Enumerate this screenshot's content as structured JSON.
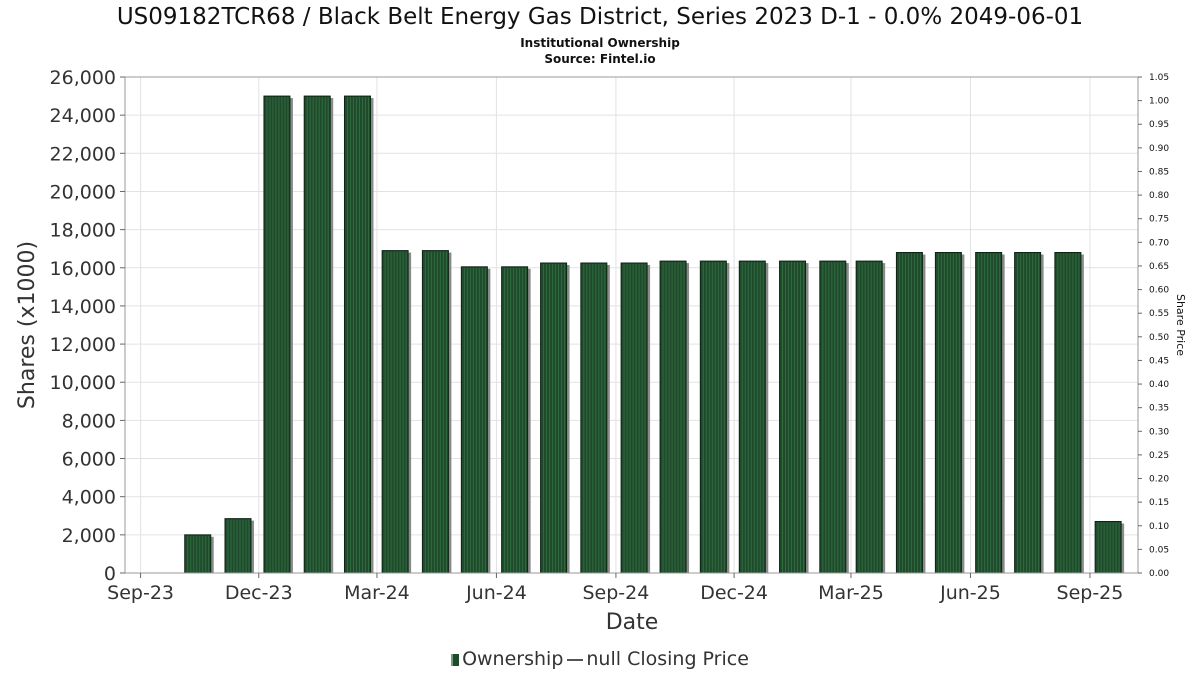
{
  "chart_data": {
    "type": "bar",
    "title": "US09182TCR68 / Black Belt Energy Gas District, Series 2023 D-1 - 0.0% 2049-06-01",
    "subtitle": "Institutional Ownership",
    "source": "Source: Fintel.io",
    "xlabel": "Date",
    "ylabel": "Shares (x1000)",
    "y2label": "Share Price",
    "ylim": [
      0,
      26000
    ],
    "y2lim": [
      0,
      1.05
    ],
    "y_ticks": [
      "0",
      "2,000",
      "4,000",
      "6,000",
      "8,000",
      "10,000",
      "12,000",
      "14,000",
      "16,000",
      "18,000",
      "20,000",
      "22,000",
      "24,000",
      "26,000"
    ],
    "y_tick_values": [
      0,
      2000,
      4000,
      6000,
      8000,
      10000,
      12000,
      14000,
      16000,
      18000,
      20000,
      22000,
      24000,
      26000
    ],
    "y2_ticks": [
      "0.00",
      "0.05",
      "0.10",
      "0.15",
      "0.20",
      "0.25",
      "0.30",
      "0.35",
      "0.40",
      "0.45",
      "0.50",
      "0.55",
      "0.60",
      "0.65",
      "0.70",
      "0.75",
      "0.80",
      "0.85",
      "0.90",
      "0.95",
      "1.00",
      "1.05"
    ],
    "y2_tick_values": [
      0,
      0.05,
      0.1,
      0.15,
      0.2,
      0.25,
      0.3,
      0.35,
      0.4,
      0.45,
      0.5,
      0.55,
      0.6,
      0.65,
      0.7,
      0.75,
      0.8,
      0.85,
      0.9,
      0.95,
      1.0,
      1.05
    ],
    "x_ticks": [
      "Sep-23",
      "Dec-23",
      "Mar-24",
      "Jun-24",
      "Sep-24",
      "Dec-24",
      "Mar-25",
      "Jun-25",
      "Sep-25"
    ],
    "x_tick_dates": [
      "2023-09-01",
      "2023-12-01",
      "2024-03-01",
      "2024-06-01",
      "2024-09-01",
      "2024-12-01",
      "2025-03-01",
      "2025-06-01",
      "2025-09-01"
    ],
    "x_range": [
      "2023-08-20",
      "2025-10-08"
    ],
    "grid": true,
    "legend_position": "bottom-center",
    "series": [
      {
        "name": "Ownership",
        "type": "bar",
        "color": "#1f4a2c",
        "x": [
          "2023-10-15",
          "2023-11-15",
          "2023-12-15",
          "2024-01-15",
          "2024-02-15",
          "2024-03-15",
          "2024-04-15",
          "2024-05-15",
          "2024-06-15",
          "2024-07-15",
          "2024-08-15",
          "2024-09-15",
          "2024-10-15",
          "2024-11-15",
          "2024-12-15",
          "2025-01-15",
          "2025-02-15",
          "2025-03-15",
          "2025-04-15",
          "2025-05-15",
          "2025-06-15",
          "2025-07-15",
          "2025-08-15",
          "2025-09-15"
        ],
        "values": [
          2000,
          2850,
          25000,
          25000,
          25000,
          16900,
          16900,
          16050,
          16050,
          16250,
          16250,
          16250,
          16350,
          16350,
          16350,
          16350,
          16350,
          16350,
          16800,
          16800,
          16800,
          16800,
          16800,
          2700
        ]
      },
      {
        "name": "null Closing Price",
        "type": "line",
        "color": "#555555",
        "values": []
      }
    ]
  }
}
